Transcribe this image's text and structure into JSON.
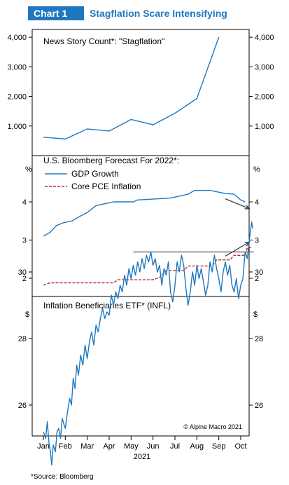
{
  "header": {
    "chart_number": "Chart 1",
    "title": "Stagflation Scare Intensifying"
  },
  "footer": {
    "source": "*Source: Bloomberg",
    "credit": "© Alpine Macro 2021"
  },
  "x_axis": {
    "months": [
      "Jan",
      "Feb",
      "Mar",
      "Apr",
      "May",
      "Jun",
      "Jul",
      "Aug",
      "Sep",
      "Oct"
    ],
    "year": "2021"
  },
  "colors": {
    "blue": "#1f78bf",
    "red": "#c0282d",
    "grey": "#555555"
  },
  "chart_data": [
    {
      "type": "line",
      "title": "News Story Count*: \"Stagflation\"",
      "x": [
        "Jan",
        "Feb",
        "Mar",
        "Apr",
        "May",
        "Jun",
        "Jul",
        "Aug",
        "Sep"
      ],
      "series": [
        {
          "values": [
            620,
            560,
            900,
            830,
            1220,
            1040,
            1430,
            1930,
            4000
          ]
        }
      ],
      "ylim": [
        0,
        4500
      ],
      "yticks": [
        1000,
        2000,
        3000,
        4000
      ],
      "ytick_labels": [
        "1,000",
        "2,000",
        "3,000",
        "4,000"
      ],
      "grid": false
    },
    {
      "type": "line",
      "title": "U.S. Bloomberg Forecast For 2022*:",
      "yunit": "%",
      "ylim": [
        1.6,
        4.8
      ],
      "yticks": [
        2,
        3,
        4
      ],
      "ytick_labels": [
        "2",
        "3",
        "4"
      ],
      "legend_position": "top-left",
      "series": [
        {
          "name": "GDP Growth",
          "style": "solid",
          "points": [
            [
              0,
              3.1
            ],
            [
              0.3,
              3.2
            ],
            [
              0.6,
              3.38
            ],
            [
              0.9,
              3.45
            ],
            [
              1.3,
              3.5
            ],
            [
              1.6,
              3.6
            ],
            [
              2.0,
              3.72
            ],
            [
              2.4,
              3.9
            ],
            [
              2.8,
              3.95
            ],
            [
              3.2,
              4.0
            ],
            [
              4.1,
              4.0
            ],
            [
              4.3,
              4.05
            ],
            [
              5.8,
              4.1
            ],
            [
              6.6,
              4.2
            ],
            [
              6.9,
              4.3
            ],
            [
              7.6,
              4.3
            ],
            [
              8.3,
              4.22
            ],
            [
              8.7,
              4.2
            ],
            [
              9.0,
              4.05
            ],
            [
              9.2,
              4.0
            ]
          ]
        },
        {
          "name": "Core PCE Inflation",
          "style": "dashed",
          "points": [
            [
              0,
              1.82
            ],
            [
              0.3,
              1.88
            ],
            [
              0.6,
              1.88
            ],
            [
              3.2,
              1.88
            ],
            [
              3.4,
              1.96
            ],
            [
              5.0,
              1.96
            ],
            [
              5.3,
              2.02
            ],
            [
              5.6,
              2.2
            ],
            [
              6.4,
              2.2
            ],
            [
              6.6,
              2.32
            ],
            [
              7.7,
              2.32
            ],
            [
              7.9,
              2.48
            ],
            [
              8.5,
              2.48
            ],
            [
              8.7,
              2.6
            ],
            [
              9.2,
              2.6
            ],
            [
              9.3,
              2.8
            ],
            [
              9.5,
              2.8
            ]
          ]
        }
      ],
      "annotations": [
        {
          "kind": "arrow",
          "from": [
            8.3,
            4.08
          ],
          "to": [
            9.4,
            3.82
          ]
        },
        {
          "kind": "arrow",
          "from": [
            8.3,
            2.58
          ],
          "to": [
            9.4,
            2.95
          ]
        }
      ]
    },
    {
      "type": "line",
      "title": "Inflation Beneficiaries ETF* (INFL)",
      "yunit": "$",
      "ylim": [
        24.0,
        32.0
      ],
      "yticks": [
        26,
        28,
        30
      ],
      "ytick_labels": [
        "26",
        "28",
        "30"
      ],
      "series": [
        {
          "name": "INFL",
          "points": [
            [
              0.0,
              25.2
            ],
            [
              0.1,
              25.0
            ],
            [
              0.18,
              25.5
            ],
            [
              0.25,
              24.9
            ],
            [
              0.32,
              24.6
            ],
            [
              0.38,
              24.2
            ],
            [
              0.45,
              24.8
            ],
            [
              0.55,
              24.6
            ],
            [
              0.62,
              25.2
            ],
            [
              0.7,
              25.3
            ],
            [
              0.78,
              25.0
            ],
            [
              0.86,
              25.6
            ],
            [
              0.95,
              25.4
            ],
            [
              1.0,
              25.3
            ],
            [
              1.1,
              25.8
            ],
            [
              1.2,
              26.2
            ],
            [
              1.28,
              26.0
            ],
            [
              1.36,
              26.8
            ],
            [
              1.44,
              26.5
            ],
            [
              1.52,
              27.2
            ],
            [
              1.6,
              26.9
            ],
            [
              1.7,
              27.5
            ],
            [
              1.8,
              27.2
            ],
            [
              1.9,
              27.8
            ],
            [
              2.0,
              27.4
            ],
            [
              2.1,
              27.9
            ],
            [
              2.2,
              28.2
            ],
            [
              2.3,
              27.8
            ],
            [
              2.4,
              28.4
            ],
            [
              2.5,
              28.2
            ],
            [
              2.6,
              28.6
            ],
            [
              2.7,
              28.9
            ],
            [
              2.8,
              28.6
            ],
            [
              2.9,
              28.8
            ],
            [
              3.0,
              28.7
            ],
            [
              3.1,
              29.3
            ],
            [
              3.2,
              29.0
            ],
            [
              3.3,
              29.4
            ],
            [
              3.4,
              29.2
            ],
            [
              3.5,
              29.6
            ],
            [
              3.6,
              29.4
            ],
            [
              3.7,
              29.9
            ],
            [
              3.8,
              29.6
            ],
            [
              3.9,
              30.1
            ],
            [
              4.0,
              29.8
            ],
            [
              4.1,
              30.2
            ],
            [
              4.2,
              29.9
            ],
            [
              4.3,
              30.3
            ],
            [
              4.4,
              30.0
            ],
            [
              4.5,
              30.4
            ],
            [
              4.6,
              30.1
            ],
            [
              4.7,
              30.5
            ],
            [
              4.8,
              30.3
            ],
            [
              4.9,
              30.6
            ],
            [
              5.0,
              30.2
            ],
            [
              5.1,
              30.4
            ],
            [
              5.2,
              30.0
            ],
            [
              5.3,
              30.2
            ],
            [
              5.4,
              29.6
            ],
            [
              5.5,
              30.1
            ],
            [
              5.6,
              29.9
            ],
            [
              5.7,
              30.3
            ],
            [
              5.8,
              29.4
            ],
            [
              5.9,
              29.1
            ],
            [
              6.0,
              29.6
            ],
            [
              6.1,
              30.3
            ],
            [
              6.2,
              30.0
            ],
            [
              6.3,
              30.5
            ],
            [
              6.4,
              30.2
            ],
            [
              6.5,
              29.5
            ],
            [
              6.6,
              29.0
            ],
            [
              6.7,
              29.4
            ],
            [
              6.8,
              30.0
            ],
            [
              6.9,
              29.6
            ],
            [
              7.0,
              30.2
            ],
            [
              7.1,
              29.8
            ],
            [
              7.2,
              30.1
            ],
            [
              7.3,
              29.7
            ],
            [
              7.4,
              29.3
            ],
            [
              7.5,
              29.6
            ],
            [
              7.6,
              30.3
            ],
            [
              7.7,
              30.0
            ],
            [
              7.8,
              30.5
            ],
            [
              7.9,
              30.1
            ],
            [
              8.0,
              29.8
            ],
            [
              8.1,
              29.4
            ],
            [
              8.2,
              30.0
            ],
            [
              8.3,
              30.3
            ],
            [
              8.4,
              29.9
            ],
            [
              8.5,
              30.2
            ],
            [
              8.6,
              29.6
            ],
            [
              8.7,
              29.4
            ],
            [
              8.8,
              29.8
            ],
            [
              8.9,
              29.2
            ],
            [
              9.0,
              29.6
            ],
            [
              9.1,
              29.8
            ],
            [
              9.2,
              30.6
            ],
            [
              9.3,
              30.4
            ],
            [
              9.4,
              31.0
            ],
            [
              9.5,
              31.5
            ],
            [
              9.55,
              31.3
            ]
          ]
        }
      ],
      "annotations": [
        {
          "kind": "hline",
          "y": 30.6,
          "x_from": 4.1,
          "x_to": 9.6
        }
      ]
    }
  ]
}
